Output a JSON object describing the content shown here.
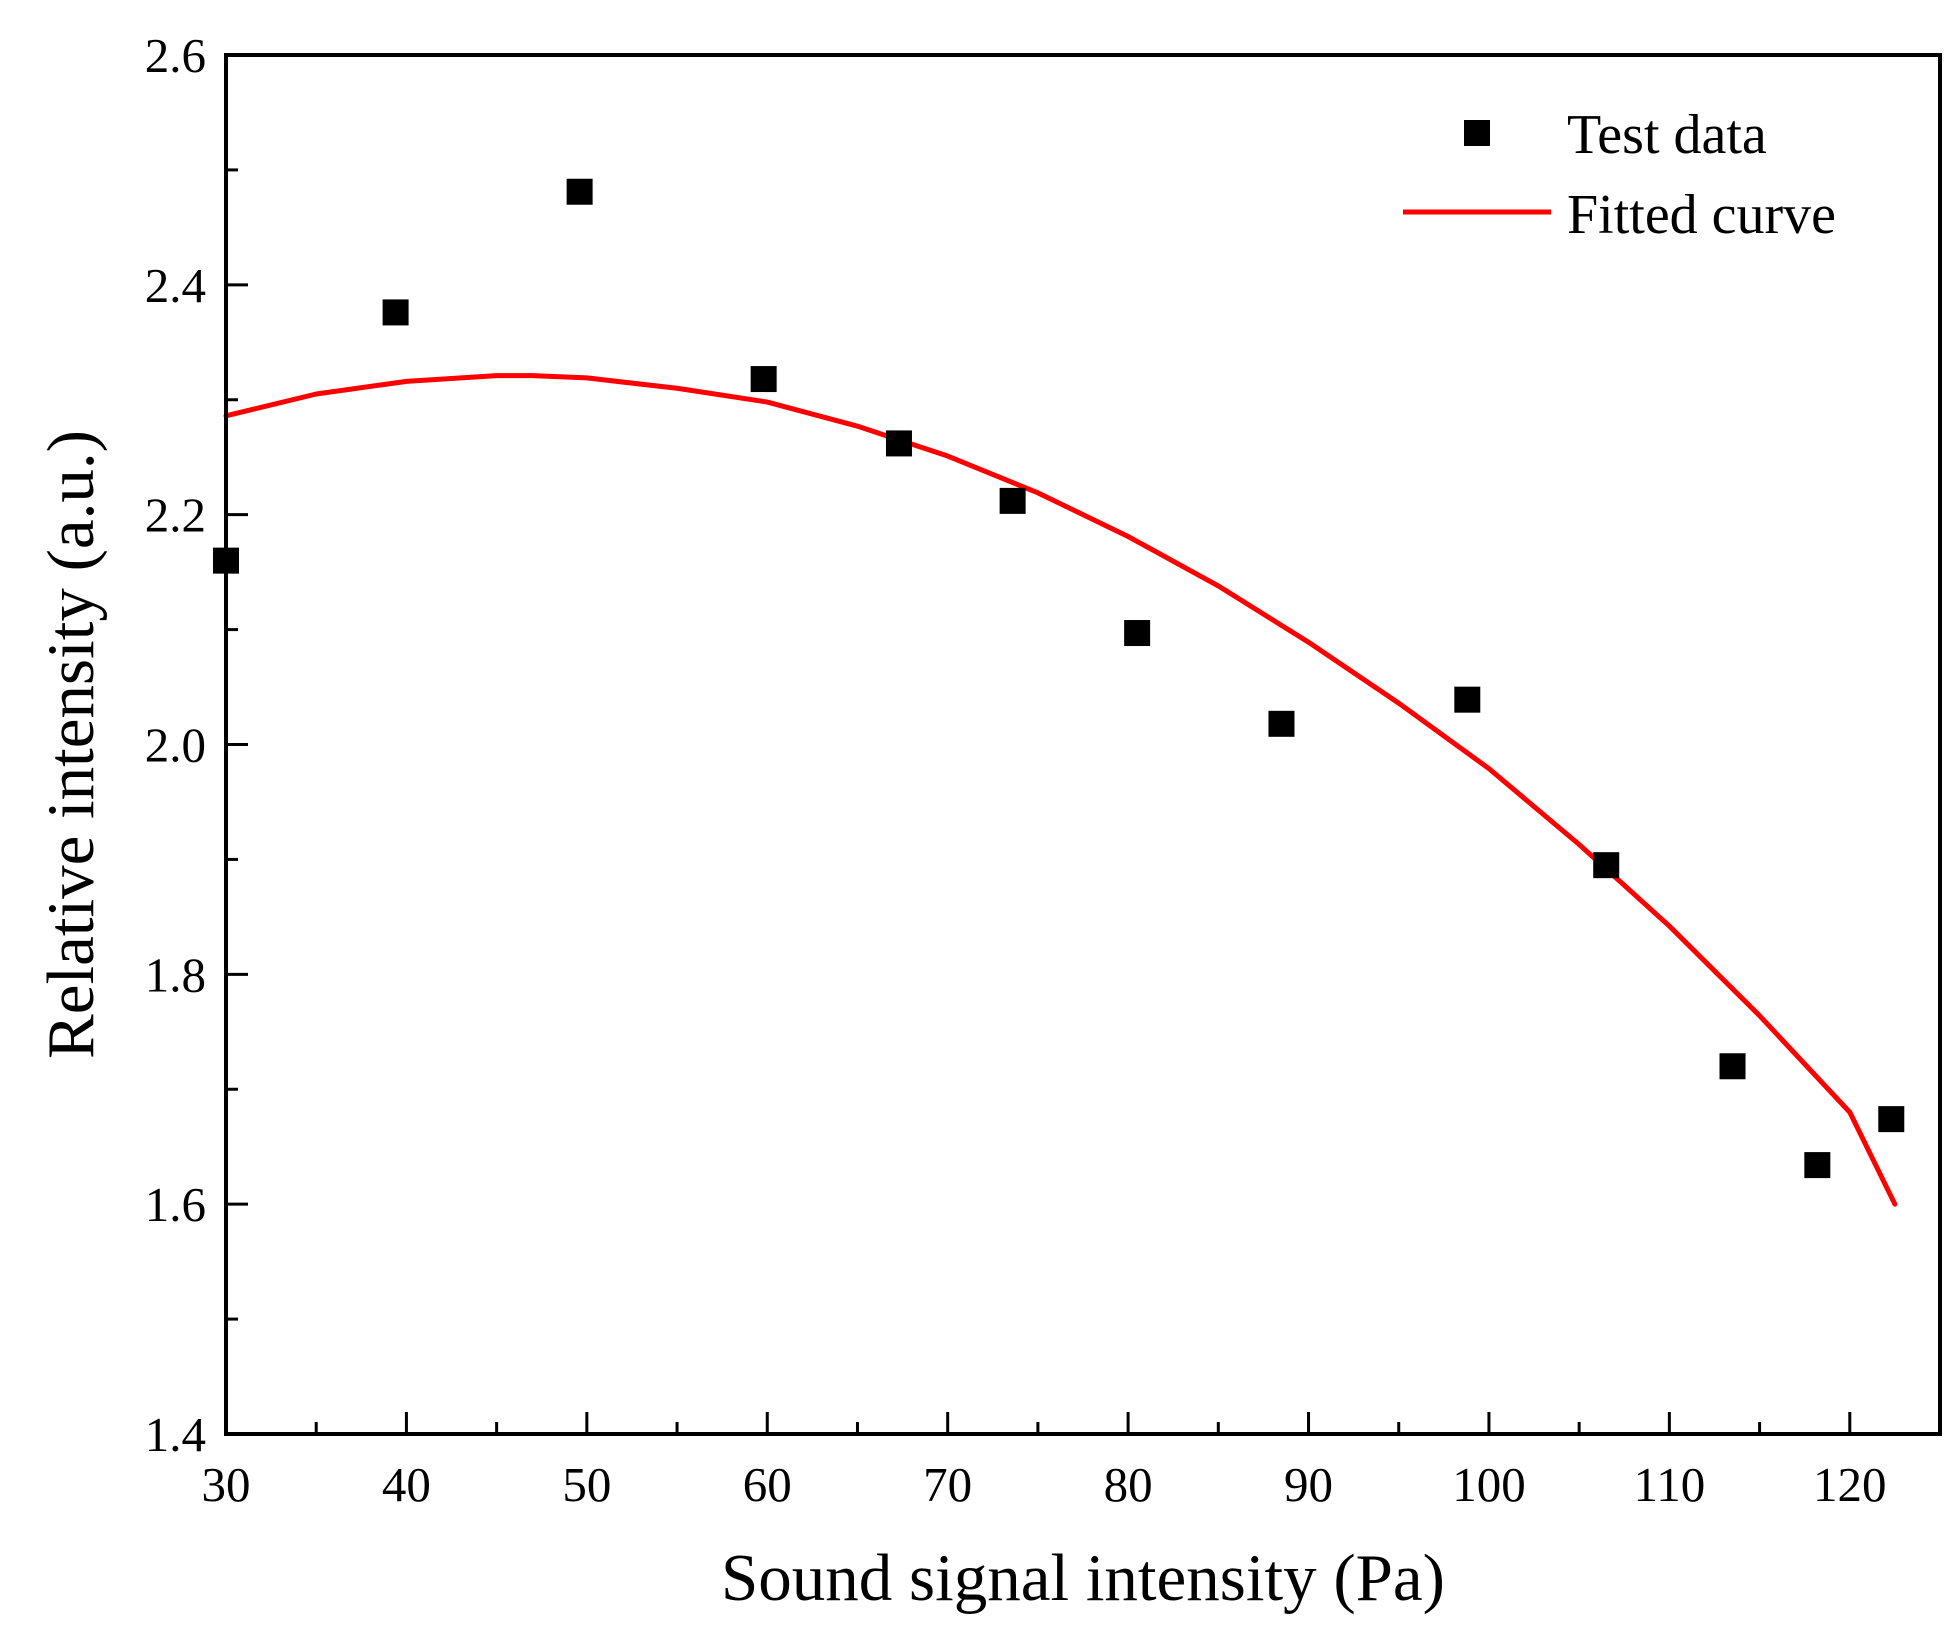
{
  "chart_data": {
    "type": "scatter",
    "title": "",
    "xlabel": "Sound signal intensity (Pa)",
    "ylabel": "Relative intensity (a.u.)",
    "xlim": [
      30,
      125
    ],
    "ylim": [
      1.4,
      2.6
    ],
    "x_ticks": [
      30,
      40,
      50,
      60,
      70,
      80,
      90,
      100,
      110,
      120
    ],
    "x_tick_labels": [
      "30",
      "40",
      "50",
      "60",
      "70",
      "80",
      "90",
      "100",
      "110",
      "120"
    ],
    "y_ticks": [
      1.4,
      1.6,
      1.8,
      2.0,
      2.2,
      2.4,
      2.6
    ],
    "y_tick_labels": [
      "1.4",
      "1.6",
      "1.8",
      "2.0",
      "2.2",
      "2.4",
      "2.6"
    ],
    "grid": false,
    "legend_position": "top-right",
    "series": [
      {
        "name": "Test data",
        "kind": "scatter",
        "marker": "square",
        "color": "#000000",
        "x": [
          30,
          39.4,
          49.6,
          59.8,
          67.3,
          73.6,
          80.5,
          88.5,
          98.8,
          106.5,
          113.5,
          118.2,
          122.3
        ],
        "y": [
          2.16,
          2.376,
          2.481,
          2.318,
          2.262,
          2.212,
          2.097,
          2.018,
          2.039,
          1.895,
          1.72,
          1.634,
          1.674
        ]
      },
      {
        "name": "Fitted curve",
        "kind": "line",
        "color": "#ff0000",
        "x": [
          30,
          35,
          40,
          45,
          47,
          50,
          55,
          60,
          65,
          70,
          75,
          80,
          85,
          90,
          95,
          100,
          105,
          110,
          115,
          120,
          122.5
        ],
        "y": [
          2.286,
          2.305,
          2.316,
          2.321,
          2.321,
          2.319,
          2.31,
          2.298,
          2.277,
          2.251,
          2.219,
          2.181,
          2.138,
          2.089,
          2.036,
          1.979,
          1.913,
          1.842,
          1.764,
          1.68,
          1.6
        ]
      }
    ]
  }
}
